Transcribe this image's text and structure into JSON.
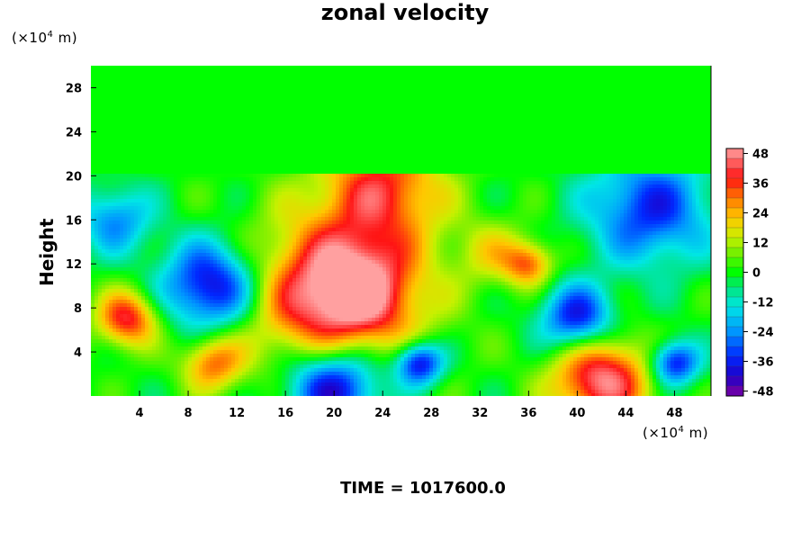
{
  "chart_data": {
    "type": "heatmap",
    "title": "zonal velocity",
    "xlabel": "",
    "ylabel": "Height",
    "x_unit": {
      "prefix": "(×10",
      "exp": "4",
      "suffix": " m)"
    },
    "y_unit": {
      "prefix": "(×10",
      "exp": "4",
      "suffix": " m)"
    },
    "xlim": [
      0,
      51
    ],
    "ylim": [
      0,
      30
    ],
    "x_ticks": [
      4,
      8,
      12,
      16,
      20,
      24,
      28,
      32,
      36,
      40,
      44,
      48
    ],
    "y_ticks": [
      4,
      8,
      12,
      16,
      20,
      24,
      28
    ],
    "colorbar": {
      "range": [
        -50,
        50
      ],
      "step": 4,
      "ticks": [
        48,
        36,
        24,
        12,
        0,
        -12,
        -24,
        -36,
        -48
      ]
    },
    "fields": [
      {
        "x": 20,
        "y": 9,
        "r": 7,
        "value": 50
      },
      {
        "x": 22,
        "y": 10,
        "r": 4,
        "value": 20
      },
      {
        "x": 24,
        "y": 19,
        "r": 5,
        "value": 35
      },
      {
        "x": 10,
        "y": 10,
        "r": 4,
        "value": -45
      },
      {
        "x": 3,
        "y": 7,
        "r": 2.5,
        "value": 40
      },
      {
        "x": 20,
        "y": 1,
        "r": 4,
        "value": -50
      },
      {
        "x": 27,
        "y": 3,
        "r": 2,
        "value": -45
      },
      {
        "x": 42,
        "y": 1.5,
        "r": 4,
        "value": 48
      },
      {
        "x": 40,
        "y": 7,
        "r": 3,
        "value": -40
      },
      {
        "x": 46,
        "y": 17,
        "r": 5,
        "value": -35
      },
      {
        "x": 2,
        "y": 16,
        "r": 3,
        "value": -25
      },
      {
        "x": 33,
        "y": 13,
        "r": 3,
        "value": 15
      },
      {
        "x": 36,
        "y": 12,
        "r": 2,
        "value": 30
      },
      {
        "x": 48,
        "y": 3,
        "r": 2,
        "value": -40
      },
      {
        "x": 10,
        "y": 3,
        "r": 2.5,
        "value": 30
      }
    ],
    "upper_layer": {
      "from_y": 20.3,
      "value": 0
    },
    "time_label": "TIME = 1017600.0"
  }
}
